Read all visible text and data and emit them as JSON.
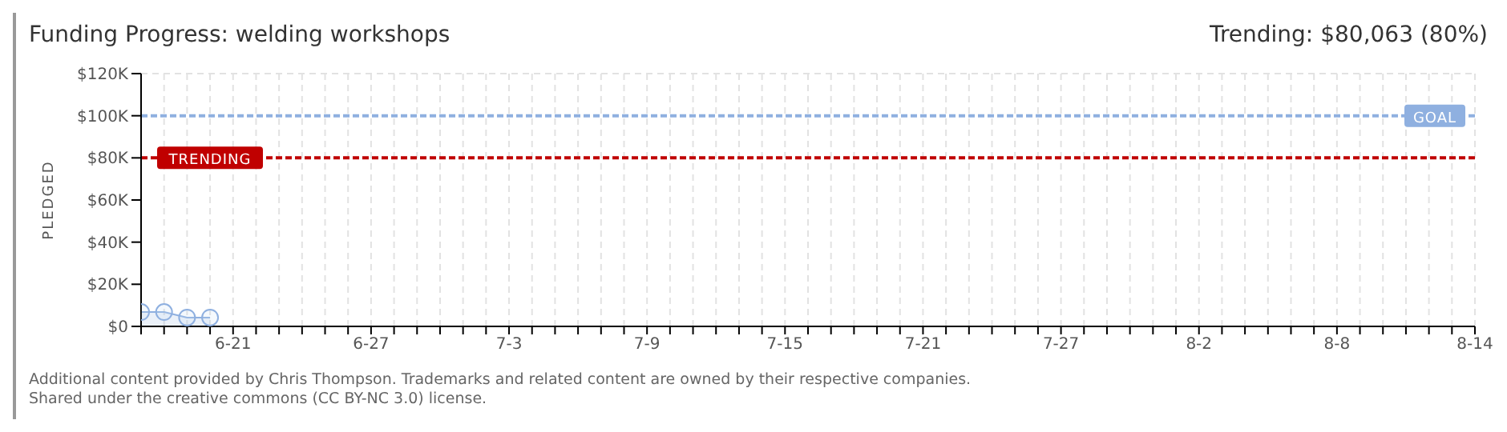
{
  "chart_data": {
    "type": "area",
    "title": "Funding Progress: welding workshops",
    "ylabel": "PLEDGED",
    "annotations": [
      "Trending: $80,063 (80%)",
      "Additional content provided by Chris Thompson. Trademarks and related content are owned by their respective companies.",
      "Shared under the creative commons (CC BY-NC 3.0) license."
    ],
    "x": [
      "--06-17",
      "--06-18",
      "--06-19",
      "--06-20"
    ],
    "series": [
      {
        "color": "#8fb0e0",
        "values": [
          6800,
          6800,
          4200,
          4200
        ]
      }
    ],
    "marker": "circle",
    "grid": true,
    "xlim": [
      "--06-17",
      "--08-14"
    ],
    "xticks": [
      {
        "value": "--06-17",
        "label": null
      },
      {
        "value": "--06-18",
        "label": null
      },
      {
        "value": "--06-19",
        "label": null
      },
      {
        "value": "--06-20",
        "label": null
      },
      {
        "value": "--06-21",
        "label": "6-21"
      },
      {
        "value": "--06-22",
        "label": null
      },
      {
        "value": "--06-23",
        "label": null
      },
      {
        "value": "--06-24",
        "label": null
      },
      {
        "value": "--06-25",
        "label": null
      },
      {
        "value": "--06-26",
        "label": null
      },
      {
        "value": "--06-27",
        "label": "6-27"
      },
      {
        "value": "--06-28",
        "label": null
      },
      {
        "value": "--06-29",
        "label": null
      },
      {
        "value": "--06-30",
        "label": null
      },
      {
        "value": "--07-01",
        "label": null
      },
      {
        "value": "--07-02",
        "label": null
      },
      {
        "value": "--07-03",
        "label": "7-3"
      },
      {
        "value": "--07-04",
        "label": null
      },
      {
        "value": "--07-05",
        "label": null
      },
      {
        "value": "--07-06",
        "label": null
      },
      {
        "value": "--07-07",
        "label": null
      },
      {
        "value": "--07-08",
        "label": null
      },
      {
        "value": "--07-09",
        "label": "7-9"
      },
      {
        "value": "--07-10",
        "label": null
      },
      {
        "value": "--07-11",
        "label": null
      },
      {
        "value": "--07-12",
        "label": null
      },
      {
        "value": "--07-13",
        "label": null
      },
      {
        "value": "--07-14",
        "label": null
      },
      {
        "value": "--07-15",
        "label": "7-15"
      },
      {
        "value": "--07-16",
        "label": null
      },
      {
        "value": "--07-17",
        "label": null
      },
      {
        "value": "--07-18",
        "label": null
      },
      {
        "value": "--07-19",
        "label": null
      },
      {
        "value": "--07-20",
        "label": null
      },
      {
        "value": "--07-21",
        "label": "7-21"
      },
      {
        "value": "--07-22",
        "label": null
      },
      {
        "value": "--07-23",
        "label": null
      },
      {
        "value": "--07-24",
        "label": null
      },
      {
        "value": "--07-25",
        "label": null
      },
      {
        "value": "--07-26",
        "label": null
      },
      {
        "value": "--07-27",
        "label": "7-27"
      },
      {
        "value": "--07-28",
        "label": null
      },
      {
        "value": "--07-29",
        "label": null
      },
      {
        "value": "--07-30",
        "label": null
      },
      {
        "value": "--07-31",
        "label": null
      },
      {
        "value": "--08-01",
        "label": null
      },
      {
        "value": "--08-02",
        "label": "8-2"
      },
      {
        "value": "--08-03",
        "label": null
      },
      {
        "value": "--08-04",
        "label": null
      },
      {
        "value": "--08-05",
        "label": null
      },
      {
        "value": "--08-06",
        "label": null
      },
      {
        "value": "--08-07",
        "label": null
      },
      {
        "value": "--08-08",
        "label": "8-8"
      },
      {
        "value": "--08-09",
        "label": null
      },
      {
        "value": "--08-10",
        "label": null
      },
      {
        "value": "--08-11",
        "label": null
      },
      {
        "value": "--08-12",
        "label": null
      },
      {
        "value": "--08-13",
        "label": null
      },
      {
        "value": "--08-14",
        "label": "8-14"
      }
    ],
    "ylim": [
      0,
      120000
    ],
    "yticks": [
      {
        "value": 0,
        "label": "$0"
      },
      {
        "value": 20000,
        "label": "$20K"
      },
      {
        "value": 40000,
        "label": "$40K"
      },
      {
        "value": 60000,
        "label": "$60K"
      },
      {
        "value": 80000,
        "label": "$80K"
      },
      {
        "value": 100000,
        "label": "$100K"
      },
      {
        "value": 120000,
        "label": "$120K"
      }
    ],
    "ref_lines": [
      {
        "axis": "y",
        "value": 100000,
        "label": "GOAL",
        "color": "#8fb0e0",
        "line_style": "dashed"
      },
      {
        "axis": "y",
        "value": 80000,
        "label": "TRENDING",
        "color": "#c00000",
        "line_style": "dashed"
      }
    ]
  }
}
